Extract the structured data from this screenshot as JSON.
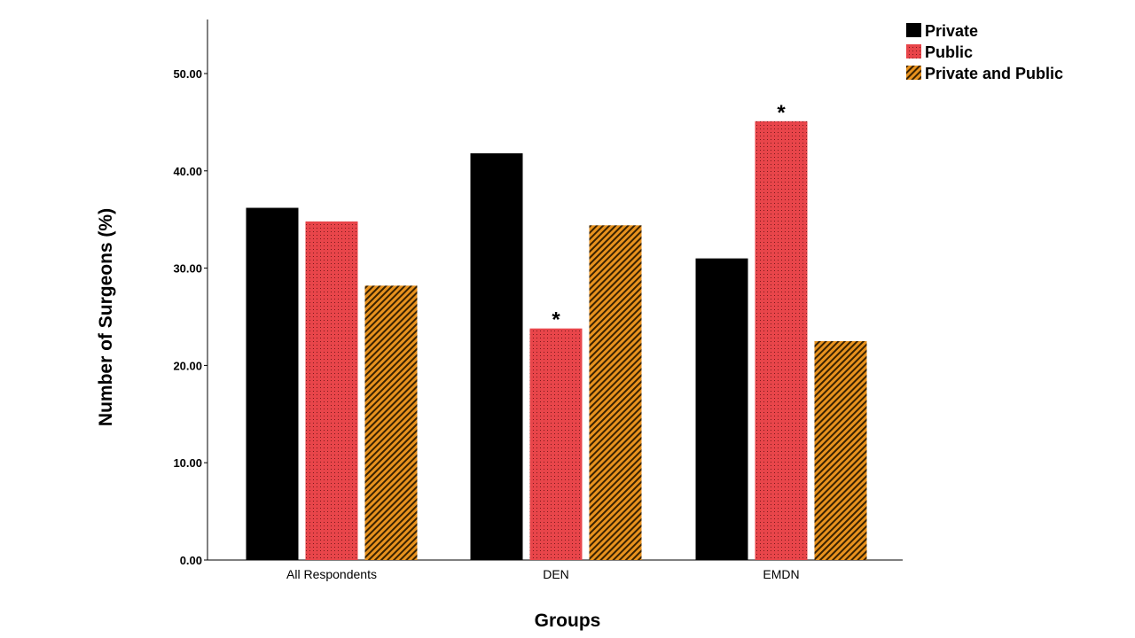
{
  "chart_data": {
    "type": "bar",
    "title": "",
    "xlabel": "Groups",
    "ylabel": "Number of Surgeons (%)",
    "categories": [
      "All Respondents",
      "DEN",
      "EMDN"
    ],
    "series": [
      {
        "name": "Private",
        "values": [
          36.2,
          41.8,
          31.0
        ],
        "color": "#000000",
        "pattern": "solid"
      },
      {
        "name": "Public",
        "values": [
          34.8,
          23.8,
          45.1
        ],
        "color": "#e8454a",
        "pattern": "dots"
      },
      {
        "name": "Private and Public",
        "values": [
          28.2,
          34.4,
          22.5
        ],
        "color": "#e8921e",
        "pattern": "diagonal-hatch"
      }
    ],
    "ylim": [
      0,
      55
    ],
    "yticks": [
      "0.00",
      "10.00",
      "20.00",
      "30.00",
      "40.00",
      "50.00"
    ],
    "annotations": [
      {
        "text": "*",
        "category": "DEN",
        "series": "Public"
      },
      {
        "text": "*",
        "category": "EMDN",
        "series": "Public"
      }
    ],
    "grid": false,
    "legend_position": "top-right"
  }
}
